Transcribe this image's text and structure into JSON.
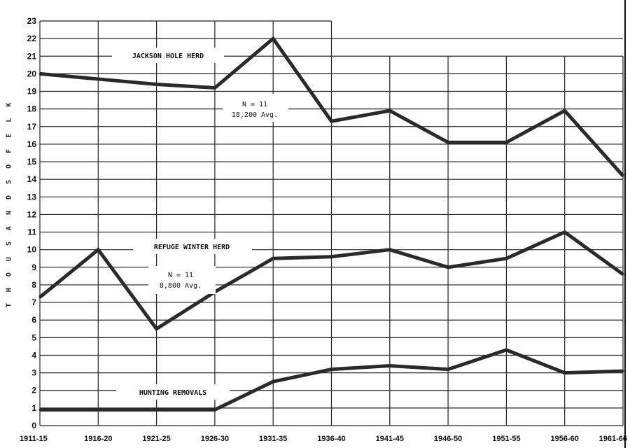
{
  "chart_data": {
    "type": "line",
    "title": "",
    "xlabel": "",
    "ylabel": "T H O U S A N D S   O F   E L K",
    "ylim": [
      0,
      23
    ],
    "yticks": [
      "0",
      "1",
      "2",
      "3",
      "4",
      "5",
      "6",
      "7",
      "8",
      "9",
      "10",
      "11",
      "12",
      "13",
      "14",
      "15",
      "16",
      "17",
      "18",
      "19",
      "20",
      "21",
      "22",
      "23"
    ],
    "categories": [
      "1911-15",
      "1916-20",
      "1921-25",
      "1926-30",
      "1931-35",
      "1936-40",
      "1941-45",
      "1946-50",
      "1951-55",
      "1956-60",
      "1961-66"
    ],
    "grid": true,
    "series": [
      {
        "name": "JACKSON HOLE HERD",
        "values": [
          20.0,
          19.7,
          19.4,
          19.2,
          22.0,
          17.3,
          17.9,
          16.1,
          16.1,
          17.9,
          14.2
        ]
      },
      {
        "name": "REFUGE WINTER HERD",
        "values": [
          7.3,
          10.0,
          5.5,
          7.6,
          9.5,
          9.6,
          10.0,
          9.0,
          9.5,
          11.0,
          8.6
        ]
      },
      {
        "name": "HUNTING REMOVALS",
        "values": [
          0.9,
          0.9,
          0.9,
          0.9,
          2.5,
          3.2,
          3.4,
          3.2,
          4.3,
          3.0,
          3.1
        ]
      }
    ],
    "annotations": [
      {
        "series": "JACKSON HOLE HERD",
        "lines": [
          "N = 11",
          "18,200 Avg."
        ]
      },
      {
        "series": "REFUGE WINTER HERD",
        "lines": [
          "N = 11",
          "8,800 Avg."
        ]
      }
    ]
  }
}
